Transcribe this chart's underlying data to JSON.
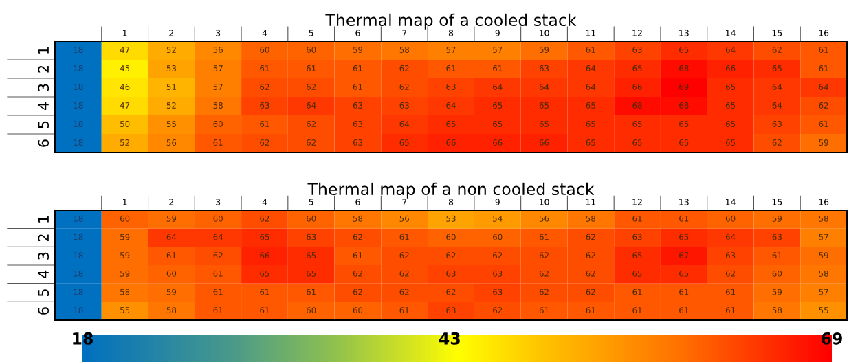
{
  "chart_data": [
    {
      "type": "heatmap",
      "title": "Thermal map of a cooled stack",
      "categories": [
        null,
        "1",
        "2",
        "3",
        "4",
        "5",
        "6",
        "7",
        "8",
        "9",
        "10",
        "11",
        "12",
        "13",
        "14",
        "15",
        "16"
      ],
      "y_categories": [
        "1",
        "2",
        "3",
        "4",
        "5",
        "6"
      ],
      "data_labels": true,
      "cells": [
        [
          18,
          47,
          52,
          56,
          60,
          60,
          59,
          58,
          57,
          57,
          59,
          61,
          63,
          65,
          64,
          62,
          61
        ],
        [
          18,
          45,
          53,
          57,
          61,
          61,
          61,
          62,
          61,
          61,
          63,
          64,
          65,
          68,
          66,
          65,
          61
        ],
        [
          18,
          46,
          51,
          57,
          62,
          62,
          61,
          62,
          63,
          64,
          64,
          64,
          66,
          69,
          65,
          64,
          64
        ],
        [
          18,
          47,
          52,
          58,
          63,
          64,
          63,
          63,
          64,
          65,
          65,
          65,
          68,
          68,
          65,
          64,
          62
        ],
        [
          18,
          50,
          55,
          60,
          61,
          62,
          63,
          64,
          65,
          65,
          65,
          65,
          65,
          65,
          65,
          63,
          61
        ],
        [
          18,
          52,
          56,
          61,
          62,
          62,
          63,
          65,
          66,
          66,
          66,
          65,
          65,
          65,
          65,
          62,
          59
        ]
      ]
    },
    {
      "type": "heatmap",
      "title": "Thermal map of a non cooled stack",
      "categories": [
        null,
        "1",
        "2",
        "3",
        "4",
        "5",
        "6",
        "7",
        "8",
        "9",
        "10",
        "11",
        "12",
        "13",
        "14",
        "15",
        "16"
      ],
      "y_categories": [
        "1",
        "2",
        "3",
        "4",
        "5",
        "6"
      ],
      "data_labels": true,
      "clim": [
        18,
        69
      ],
      "cticks": [
        18,
        43,
        69
      ],
      "cells": [
        [
          18,
          60,
          59,
          60,
          62,
          60,
          58,
          56,
          53,
          54,
          56,
          58,
          61,
          61,
          60,
          59,
          58
        ],
        [
          18,
          59,
          64,
          64,
          65,
          63,
          62,
          61,
          60,
          60,
          61,
          62,
          63,
          65,
          64,
          63,
          57
        ],
        [
          18,
          59,
          61,
          62,
          66,
          65,
          61,
          62,
          62,
          62,
          62,
          62,
          65,
          67,
          63,
          61,
          59
        ],
        [
          18,
          59,
          60,
          61,
          65,
          65,
          62,
          62,
          63,
          63,
          62,
          62,
          65,
          65,
          62,
          60,
          58
        ],
        [
          18,
          58,
          59,
          61,
          61,
          61,
          62,
          62,
          62,
          63,
          62,
          62,
          61,
          61,
          61,
          59,
          57
        ],
        [
          18,
          55,
          58,
          61,
          61,
          60,
          60,
          61,
          63,
          62,
          61,
          61,
          61,
          61,
          61,
          58,
          55
        ]
      ]
    }
  ]
}
